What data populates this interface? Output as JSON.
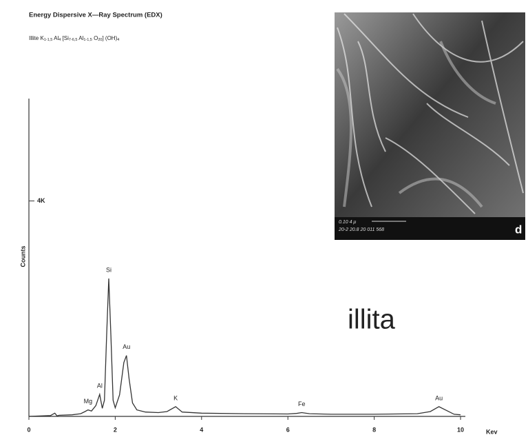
{
  "chart_data": {
    "type": "line",
    "title": "Energy Dispersive X—Ray Spectrum (EDX)",
    "subtitle_parts": [
      "Illite K",
      "1-1,5",
      " Al",
      "4",
      " [Si",
      "7-6,5",
      " Al",
      "1-1,5",
      " O",
      "20",
      "] (OH)",
      "4"
    ],
    "x_label": "Kev",
    "y_label": "Counts",
    "xlim": [
      0,
      10
    ],
    "xticks": [
      0,
      2,
      4,
      6,
      8,
      10
    ],
    "ylim": [
      0,
      5900
    ],
    "yticks": [
      {
        "value": 4000,
        "label": "4K"
      }
    ],
    "series": [
      {
        "name": "spectrum",
        "color": "#333333",
        "x": [
          0.0,
          0.5,
          0.6,
          0.65,
          0.7,
          1.0,
          1.2,
          1.3,
          1.37,
          1.45,
          1.55,
          1.64,
          1.7,
          1.75,
          1.8,
          1.85,
          1.9,
          1.95,
          2.0,
          2.1,
          2.2,
          2.26,
          2.32,
          2.4,
          2.5,
          2.7,
          3.0,
          3.2,
          3.4,
          3.55,
          4.0,
          5.0,
          6.0,
          6.2,
          6.32,
          6.5,
          7.0,
          8.0,
          9.0,
          9.3,
          9.5,
          9.7,
          9.85,
          10.0
        ],
        "values": [
          0,
          15,
          60,
          10,
          20,
          30,
          50,
          90,
          120,
          100,
          200,
          410,
          150,
          300,
          1500,
          2560,
          1500,
          300,
          160,
          400,
          1000,
          1130,
          700,
          250,
          120,
          80,
          70,
          90,
          180,
          80,
          60,
          50,
          45,
          55,
          70,
          50,
          40,
          40,
          50,
          90,
          180,
          100,
          40,
          30
        ]
      }
    ],
    "peak_labels": [
      {
        "text": "Mg",
        "energy": 1.37
      },
      {
        "text": "Al",
        "energy": 1.64
      },
      {
        "text": "Si",
        "energy": 1.85
      },
      {
        "text": "Au",
        "energy": 2.26
      },
      {
        "text": "K",
        "energy": 3.4
      },
      {
        "text": "Fe",
        "energy": 6.32
      },
      {
        "text": "Au",
        "energy": 9.5
      }
    ],
    "annotation": "illita",
    "image_label": "d",
    "image_scale_text": [
      "0.10 4 μ",
      "20-2 20.8 20 011 568"
    ]
  }
}
